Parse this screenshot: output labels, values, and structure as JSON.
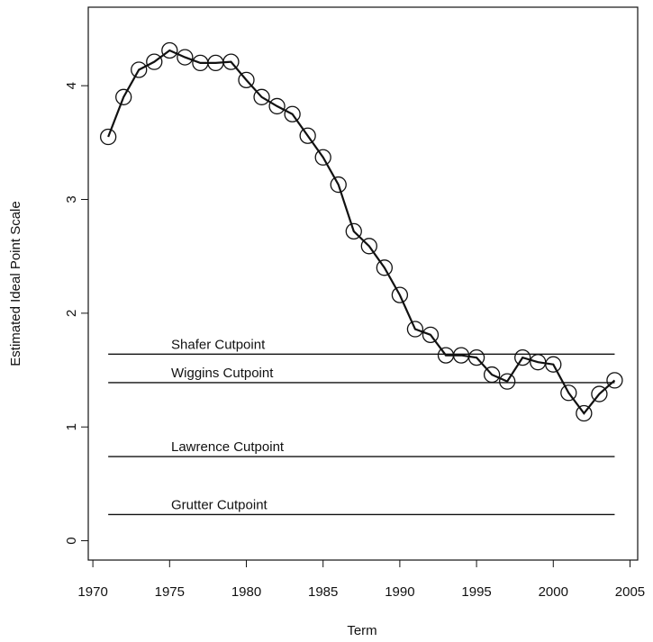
{
  "chart_data": {
    "type": "line",
    "xlabel": "Term",
    "ylabel": "Estimated Ideal Point Scale",
    "x": [
      1971,
      1972,
      1973,
      1974,
      1975,
      1976,
      1977,
      1978,
      1979,
      1980,
      1981,
      1982,
      1983,
      1984,
      1985,
      1986,
      1987,
      1988,
      1989,
      1990,
      1991,
      1992,
      1993,
      1994,
      1995,
      1996,
      1997,
      1998,
      1999,
      2000,
      2001,
      2002,
      2003,
      2004
    ],
    "series": [
      {
        "color": "#111111",
        "values": [
          3.55,
          3.9,
          4.14,
          4.21,
          4.31,
          4.25,
          4.2,
          4.2,
          4.21,
          4.05,
          3.9,
          3.82,
          3.75,
          3.56,
          3.37,
          3.13,
          2.72,
          2.59,
          2.4,
          2.16,
          1.86,
          1.81,
          1.63,
          1.63,
          1.61,
          1.46,
          1.4,
          1.61,
          1.57,
          1.55,
          1.3,
          1.12,
          1.29,
          1.41
        ]
      }
    ],
    "cutpoints": [
      {
        "label": "Shafer Cutpoint",
        "value": 1.64
      },
      {
        "label": "Wiggins Cutpoint",
        "value": 1.39
      },
      {
        "label": "Lawrence Cutpoint",
        "value": 0.74
      },
      {
        "label": "Grutter Cutpoint",
        "value": 0.23
      }
    ],
    "xlim": [
      1969.7,
      2005.5
    ],
    "xticks": [
      1970,
      1975,
      1980,
      1985,
      1990,
      1995,
      2000,
      2005
    ],
    "ylim": [
      -0.17,
      4.69
    ],
    "yticks": [
      0,
      1,
      2,
      3,
      4
    ]
  }
}
